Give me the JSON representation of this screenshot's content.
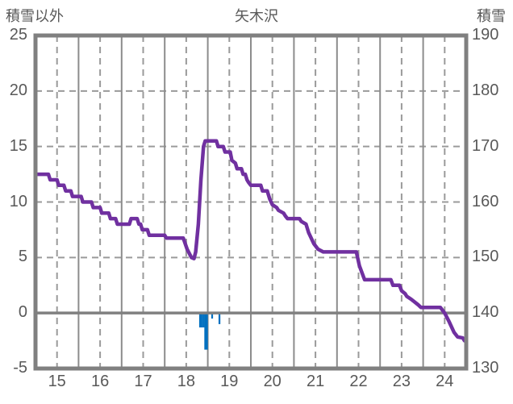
{
  "header": {
    "left_axis_title": "積雪以外",
    "station_title": "矢木沢",
    "right_axis_title": "積雪"
  },
  "colors": {
    "background": "#ffffff",
    "frame": "#808080",
    "grid_solid": "#8c8c8c",
    "grid_dashed": "#9a9a9a",
    "zero_line": "#808080",
    "text": "#595959",
    "snow_line": "#7030A0",
    "bars": "#0070C0"
  },
  "chart_data": {
    "type": "line",
    "title": "矢木沢",
    "left_axis": {
      "title": "積雪以外",
      "min": -5,
      "max": 25,
      "ticks": [
        25,
        20,
        15,
        10,
        5,
        0,
        -5
      ]
    },
    "right_axis": {
      "title": "積雪",
      "min": 130,
      "max": 190,
      "ticks": [
        190,
        180,
        170,
        160,
        150,
        140,
        130
      ]
    },
    "x_axis": {
      "start_day": 15,
      "end_day": 25,
      "tick_labels": [
        15,
        16,
        17,
        18,
        19,
        20,
        21,
        22,
        23,
        24
      ]
    },
    "grid": {
      "h_dashed_left_values": [
        20,
        15,
        10,
        5
      ],
      "v_solid_days": [
        16,
        17,
        18,
        19,
        20,
        21,
        22,
        23,
        24
      ],
      "v_dashed_days": [
        15.5,
        16.5,
        17.5,
        18.5,
        19.5,
        20.5,
        21.5,
        22.5,
        23.5,
        24.5
      ],
      "zero_left_value": 0
    },
    "series": [
      {
        "name": "積雪",
        "type": "line",
        "axis": "right",
        "color": "#7030A0",
        "points": [
          [
            15.0,
            165
          ],
          [
            15.3,
            165
          ],
          [
            15.34,
            164
          ],
          [
            15.5,
            164
          ],
          [
            15.54,
            163
          ],
          [
            15.66,
            163
          ],
          [
            15.7,
            162
          ],
          [
            15.82,
            162
          ],
          [
            15.86,
            161
          ],
          [
            16.06,
            161
          ],
          [
            16.1,
            160
          ],
          [
            16.3,
            160
          ],
          [
            16.34,
            159
          ],
          [
            16.5,
            159
          ],
          [
            16.54,
            158
          ],
          [
            16.7,
            158
          ],
          [
            16.74,
            157
          ],
          [
            16.86,
            157
          ],
          [
            16.9,
            156
          ],
          [
            17.18,
            156
          ],
          [
            17.22,
            157
          ],
          [
            17.36,
            157
          ],
          [
            17.4,
            156
          ],
          [
            17.44,
            156
          ],
          [
            17.48,
            155
          ],
          [
            17.6,
            155
          ],
          [
            17.64,
            154
          ],
          [
            18.0,
            154
          ],
          [
            18.04,
            153.5
          ],
          [
            18.43,
            153.5
          ],
          [
            18.52,
            151.5
          ],
          [
            18.62,
            150
          ],
          [
            18.68,
            149.8
          ],
          [
            18.72,
            151
          ],
          [
            18.78,
            156
          ],
          [
            18.84,
            164
          ],
          [
            18.9,
            170
          ],
          [
            18.94,
            171
          ],
          [
            19.2,
            171
          ],
          [
            19.24,
            170
          ],
          [
            19.36,
            170
          ],
          [
            19.4,
            169
          ],
          [
            19.52,
            169
          ],
          [
            19.56,
            167.5
          ],
          [
            19.64,
            167
          ],
          [
            19.68,
            166
          ],
          [
            19.78,
            166
          ],
          [
            19.82,
            165
          ],
          [
            19.87,
            165
          ],
          [
            19.91,
            164
          ],
          [
            19.95,
            163.5
          ],
          [
            20.0,
            163
          ],
          [
            20.23,
            163
          ],
          [
            20.27,
            162
          ],
          [
            20.38,
            162
          ],
          [
            20.44,
            160.5
          ],
          [
            20.5,
            159.5
          ],
          [
            20.6,
            159
          ],
          [
            20.64,
            158.5
          ],
          [
            20.76,
            158
          ],
          [
            20.8,
            157.5
          ],
          [
            20.85,
            157
          ],
          [
            21.13,
            157
          ],
          [
            21.17,
            156.5
          ],
          [
            21.28,
            156
          ],
          [
            21.34,
            154.5
          ],
          [
            21.46,
            152.5
          ],
          [
            21.56,
            151.5
          ],
          [
            21.68,
            151
          ],
          [
            22.45,
            151
          ],
          [
            22.52,
            148.5
          ],
          [
            22.64,
            146
          ],
          [
            23.25,
            146
          ],
          [
            23.3,
            145
          ],
          [
            23.45,
            145
          ],
          [
            23.5,
            144
          ],
          [
            23.58,
            143.5
          ],
          [
            23.62,
            143
          ],
          [
            23.72,
            142.5
          ],
          [
            23.8,
            142
          ],
          [
            23.88,
            141.5
          ],
          [
            23.95,
            141
          ],
          [
            24.4,
            141
          ],
          [
            24.5,
            140
          ],
          [
            24.6,
            138.5
          ],
          [
            24.72,
            136.5
          ],
          [
            24.8,
            135.7
          ],
          [
            24.92,
            135.5
          ],
          [
            24.96,
            135
          ]
        ]
      },
      {
        "name": "積雪以外",
        "type": "bar",
        "axis": "left",
        "color": "#0070C0",
        "bar_width_days": 0.042,
        "points": [
          [
            18.8,
            -1.3
          ],
          [
            18.84,
            -1.3
          ],
          [
            18.88,
            -1.3
          ],
          [
            18.92,
            -3.3
          ],
          [
            18.96,
            -3.3
          ],
          [
            19.08,
            -0.5
          ],
          [
            19.25,
            -1.0
          ]
        ]
      }
    ]
  }
}
